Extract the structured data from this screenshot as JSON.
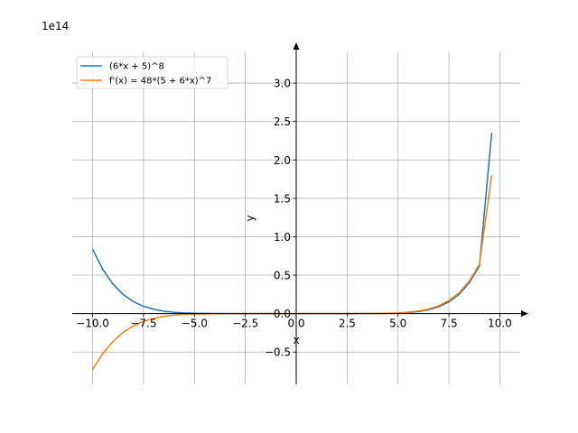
{
  "chart_data": {
    "type": "line",
    "title": "",
    "xlabel": "x",
    "ylabel": "y",
    "offset_label": "1e14",
    "xlim": [
      -11,
      11
    ],
    "ylim": [
      -0.92,
      3.4
    ],
    "grid": true,
    "legend_position": "top-left",
    "x_ticks": [
      -10.0,
      -7.5,
      -5.0,
      -2.5,
      0.0,
      2.5,
      5.0,
      7.5,
      10.0
    ],
    "x_tick_labels": [
      "−10.0",
      "−7.5",
      "−5.0",
      "−2.5",
      "0.0",
      "2.5",
      "5.0",
      "7.5",
      "10.0"
    ],
    "y_ticks": [
      -0.5,
      0.0,
      0.5,
      1.0,
      1.5,
      2.0,
      2.5,
      3.0
    ],
    "y_tick_labels": [
      "−0.5",
      "0.0",
      "0.5",
      "1.0",
      "1.5",
      "2.0",
      "2.5",
      "3.0"
    ],
    "series": [
      {
        "name": "(6*x + 5)^8",
        "color": "#1f77b4",
        "x": [
          -10,
          -9.5,
          -9,
          -8.5,
          -8,
          -7.5,
          -7,
          -6.5,
          -6,
          -5.5,
          -5,
          -4,
          -3,
          -2,
          -1,
          0,
          1,
          2,
          3,
          4,
          5,
          5.5,
          6,
          6.5,
          7,
          7.5,
          8,
          8.5,
          9,
          9.6
        ],
        "y": [
          0.837,
          0.574,
          0.384,
          0.249,
          0.157,
          0.0954,
          0.056,
          0.0315,
          0.0169,
          0.0086,
          0.0041,
          0.0008,
          0.0001,
          0.0,
          0.0,
          0.0,
          0.0,
          0.0,
          0.0002,
          0.0013,
          0.0066,
          0.0136,
          0.0266,
          0.0496,
          0.0886,
          0.152,
          0.251,
          0.401,
          0.622,
          2.35
        ]
      },
      {
        "name": "f'(x) = 48*(5 + 6*x)^7",
        "color": "#ff7f0e",
        "x": [
          -10,
          -9.5,
          -9,
          -8.5,
          -8,
          -7.5,
          -7,
          -6.5,
          -6,
          -5.5,
          -5,
          -4,
          -3,
          -2,
          -1,
          0,
          1,
          2,
          3,
          4,
          5,
          5.5,
          6,
          6.5,
          7,
          7.5,
          8,
          8.5,
          9,
          9.6
        ],
        "y": [
          -0.727,
          -0.521,
          -0.363,
          -0.244,
          -0.16,
          -0.102,
          -0.062,
          -0.036,
          -0.0197,
          -0.0104,
          -0.0053,
          -0.0009,
          -0.0001,
          0.0,
          0.0,
          0.0,
          0.0,
          0.0,
          0.0003,
          0.0011,
          0.0091,
          0.0179,
          0.0332,
          0.0593,
          0.102,
          0.169,
          0.271,
          0.423,
          0.642,
          1.8
        ]
      }
    ]
  }
}
